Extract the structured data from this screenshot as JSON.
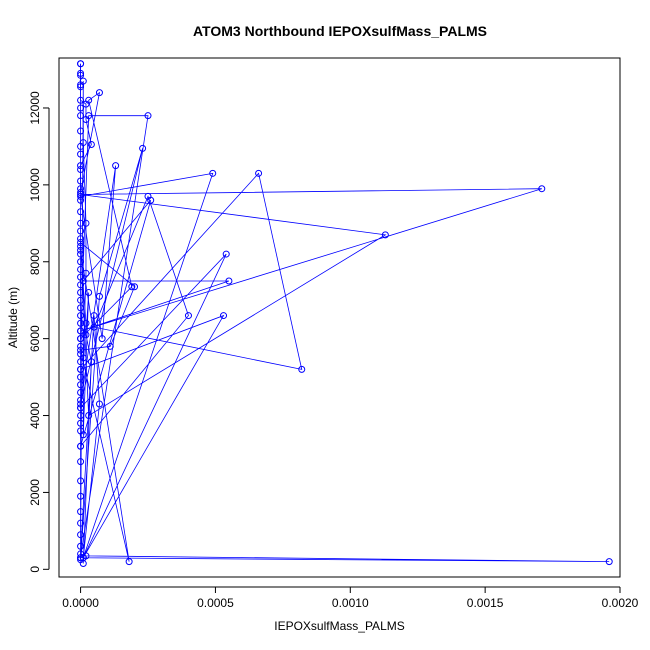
{
  "chart_data": {
    "type": "line",
    "title": "ATOM3 Northbound IEPOXsulfMass_PALMS",
    "xlabel": "IEPOXsulfMass_PALMS",
    "ylabel": "Altitude (m)",
    "xlim": [
      -8e-05,
      0.002
    ],
    "ylim": [
      -200,
      13300
    ],
    "x_ticks": [
      0,
      0.0005,
      0.001,
      0.0015,
      0.002
    ],
    "x_tick_labels": [
      "0.0000",
      "0.0005",
      "0.0010",
      "0.0015",
      "0.0020"
    ],
    "y_ticks": [
      0,
      2000,
      4000,
      6000,
      8000,
      10000,
      12000
    ],
    "y_tick_labels": [
      "0",
      "2000",
      "4000",
      "6000",
      "8000",
      "10000",
      "12000"
    ],
    "grid": false,
    "legend": "none",
    "series_color": "#0000ff",
    "series": [
      {
        "x": [
          0,
          0,
          0,
          0,
          2e-05,
          2e-05,
          4e-05,
          0.0,
          0.0,
          7e-05,
          3e-05,
          0.00019,
          0.0,
          3e-05,
          0.00025,
          0.0,
          7e-05,
          0.00023,
          0.0,
          0.00013,
          8e-05,
          0.0,
          0.00049,
          1e-05,
          0.00053,
          0.0,
          0.00066,
          0.00082,
          5e-05,
          0.00025,
          0.0004,
          0.0,
          0.00026,
          1e-05,
          0.00055,
          0.0,
          0.00171,
          0.0,
          0.00113,
          3e-05,
          0.0,
          0.0002,
          0.00011,
          0.0,
          0.00018,
          0.0,
          2e-05,
          0.0,
          0.00054,
          1e-05,
          7e-05,
          5e-05,
          0.0,
          2e-05,
          0.00196,
          0.0
        ],
        "y": [
          13150,
          12850,
          12550,
          12200,
          12100,
          11700,
          11050,
          10500,
          9800,
          12400,
          12200,
          7350,
          6000,
          11800,
          11800,
          300,
          7100,
          10950,
          4300,
          10500,
          6000,
          9700,
          10300,
          300,
          6600,
          5200,
          10300,
          5200,
          6300,
          9700,
          6600,
          3200,
          9600,
          7500,
          7500,
          6200,
          9900,
          9750,
          8700,
          4000,
          8500,
          7350,
          5800,
          5700,
          200,
          8300,
          6400,
          4200,
          8200,
          300,
          4300,
          6600,
          400,
          350,
          200,
          300
        ]
      },
      {
        "x": [
          0,
          0,
          0,
          0,
          0,
          0,
          0,
          0,
          0,
          0,
          0,
          0,
          0,
          0,
          0,
          0,
          0,
          0,
          0,
          0,
          0,
          0,
          0,
          0,
          0,
          0,
          0,
          0,
          0,
          0,
          0,
          0,
          0,
          0,
          0,
          0,
          0,
          0,
          0,
          0,
          0,
          0,
          0,
          0,
          0,
          0,
          0,
          0,
          0,
          0,
          1e-05,
          1e-05,
          2e-05,
          2e-05,
          1e-05,
          1e-05,
          3e-05,
          2e-05,
          4e-05,
          1e-05
        ],
        "y": [
          13150,
          12900,
          12600,
          12000,
          11800,
          11400,
          11000,
          10800,
          10400,
          10100,
          9900,
          9600,
          9300,
          9000,
          8800,
          8600,
          8400,
          8200,
          8000,
          7800,
          7600,
          7400,
          7200,
          7000,
          6800,
          6600,
          6400,
          6200,
          6000,
          5800,
          5600,
          5400,
          5200,
          5000,
          4800,
          4600,
          4400,
          4200,
          4000,
          3800,
          3600,
          3200,
          2800,
          2300,
          1900,
          1500,
          1200,
          900,
          600,
          250,
          12700,
          11100,
          9000,
          7700,
          5500,
          3500,
          7200,
          6100,
          5400,
          150
        ]
      }
    ]
  }
}
